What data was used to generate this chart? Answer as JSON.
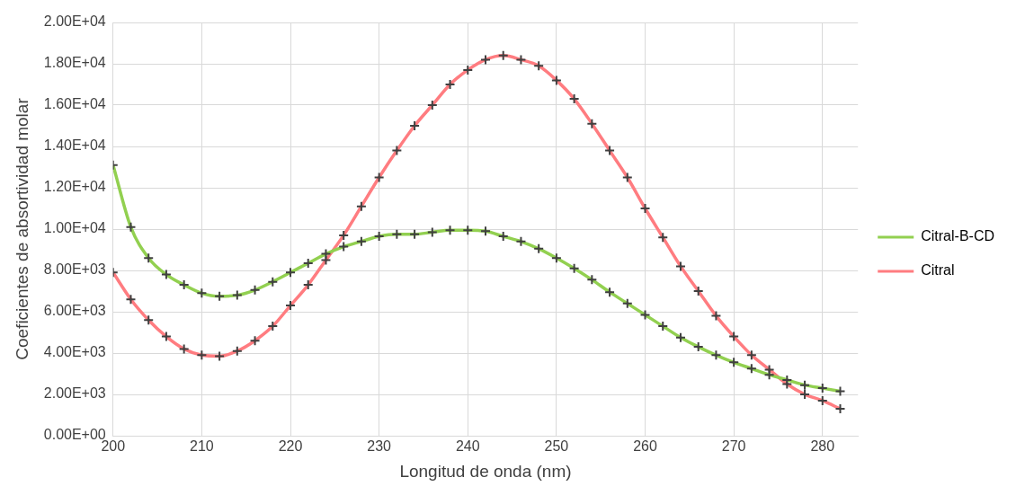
{
  "chart_data": {
    "type": "line",
    "xlabel": "Longitud de onda (nm)",
    "ylabel": "Coeficientes de absortividad molar",
    "x": [
      200,
      202,
      204,
      206,
      208,
      210,
      212,
      214,
      216,
      218,
      220,
      222,
      224,
      226,
      228,
      230,
      232,
      234,
      236,
      238,
      240,
      242,
      244,
      246,
      248,
      250,
      252,
      254,
      256,
      258,
      260,
      262,
      264,
      266,
      268,
      270,
      272,
      274,
      276,
      278,
      280,
      282
    ],
    "series": [
      {
        "name": "Citral-B-CD",
        "color": "#92d050",
        "values": [
          13100,
          10100,
          8600,
          7800,
          7300,
          6900,
          6750,
          6800,
          7050,
          7450,
          7900,
          8350,
          8800,
          9150,
          9400,
          9650,
          9750,
          9750,
          9850,
          9950,
          9950,
          9900,
          9650,
          9400,
          9050,
          8600,
          8100,
          7550,
          6950,
          6400,
          5850,
          5300,
          4750,
          4300,
          3900,
          3550,
          3250,
          2950,
          2700,
          2450,
          2300,
          2150
        ]
      },
      {
        "name": "Citral",
        "color": "#ff7c80",
        "values": [
          7900,
          6600,
          5600,
          4800,
          4200,
          3900,
          3850,
          4100,
          4600,
          5300,
          6300,
          7300,
          8500,
          9700,
          11100,
          12500,
          13800,
          15000,
          16000,
          17000,
          17700,
          18200,
          18400,
          18200,
          17900,
          17200,
          16300,
          15100,
          13800,
          12500,
          11000,
          9600,
          8200,
          7000,
          5800,
          4800,
          3900,
          3200,
          2500,
          2000,
          1700,
          1300
        ]
      }
    ],
    "xlim": [
      200,
      284
    ],
    "xticks": [
      200,
      210,
      220,
      230,
      240,
      250,
      260,
      270,
      280
    ],
    "ylim": [
      0,
      20000
    ],
    "yticks": [
      {
        "value": 0,
        "label": "0.00E+00"
      },
      {
        "value": 2000,
        "label": "2.00E+03"
      },
      {
        "value": 4000,
        "label": "4.00E+03"
      },
      {
        "value": 6000,
        "label": "6.00E+03"
      },
      {
        "value": 8000,
        "label": "8.00E+03"
      },
      {
        "value": 10000,
        "label": "1.00E+04"
      },
      {
        "value": 12000,
        "label": "1.20E+04"
      },
      {
        "value": 14000,
        "label": "1.40E+04"
      },
      {
        "value": 16000,
        "label": "1.60E+04"
      },
      {
        "value": 18000,
        "label": "1.80E+04"
      },
      {
        "value": 20000,
        "label": "2.00E+04"
      }
    ],
    "grid": true,
    "legend": "right",
    "marker": "cross",
    "line_style": "solid"
  }
}
